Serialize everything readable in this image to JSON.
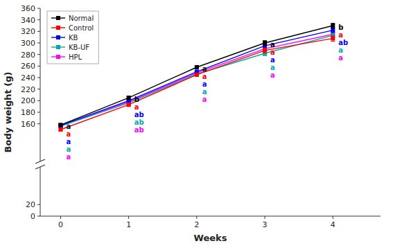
{
  "chart_data": {
    "type": "line",
    "xlabel": "Weeks",
    "ylabel": "Body weight (g)",
    "x": [
      0,
      1,
      2,
      3,
      4
    ],
    "xlim": [
      -0.3,
      4.7
    ],
    "xticks": [
      0,
      1,
      2,
      3,
      4
    ],
    "ylim": [
      0,
      360
    ],
    "yticks": [
      0,
      20,
      160,
      180,
      200,
      220,
      240,
      260,
      280,
      300,
      320,
      340,
      360
    ],
    "legend": "upper left",
    "marker": "square",
    "line_style": "solid",
    "series": [
      {
        "name": "Normal",
        "color": "#000000",
        "values": [
          158,
          205,
          258,
          300,
          330
        ],
        "errors": [
          2,
          3,
          3,
          4,
          4
        ],
        "letters": [
          "a",
          "b",
          "a",
          "a",
          "b"
        ]
      },
      {
        "name": "Control",
        "color": "#ff0000",
        "values": [
          150,
          193,
          245,
          287,
          308
        ],
        "errors": [
          2,
          3,
          3,
          4,
          5
        ],
        "letters": [
          "a",
          "a",
          "a",
          "a",
          "a"
        ]
      },
      {
        "name": "KB",
        "color": "#0000ff",
        "values": [
          157,
          200,
          250,
          295,
          322
        ],
        "errors": [
          2,
          3,
          3,
          4,
          4
        ],
        "letters": [
          "a",
          "ab",
          "a",
          "a",
          "ab"
        ]
      },
      {
        "name": "KB-UF",
        "color": "#00aaaa",
        "values": [
          156,
          196,
          246,
          282,
          313
        ],
        "errors": [
          2,
          3,
          3,
          4,
          4
        ],
        "letters": [
          "a",
          "ab",
          "a",
          "a",
          "a"
        ]
      },
      {
        "name": "HPL",
        "color": "#ff00ff",
        "values": [
          157,
          198,
          248,
          290,
          315
        ],
        "errors": [
          2,
          3,
          3,
          4,
          4
        ],
        "letters": [
          "a",
          "ab",
          "a",
          "a",
          "a"
        ]
      }
    ]
  }
}
